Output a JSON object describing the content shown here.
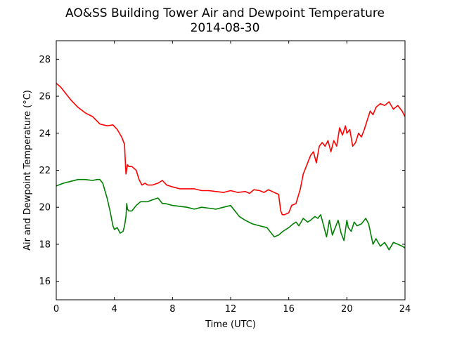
{
  "chart_data": {
    "type": "line",
    "title": "AO&SS Building Tower Air and Dewpoint Temperature",
    "subtitle": "2014-08-30",
    "xlabel": "Time (UTC)",
    "ylabel": "Air and Dewpoint Temperature (°C)",
    "xlim": [
      0,
      24
    ],
    "ylim": [
      15,
      29
    ],
    "xticks": [
      0,
      4,
      8,
      12,
      16,
      20,
      24
    ],
    "yticks": [
      16,
      18,
      20,
      22,
      24,
      26,
      28
    ],
    "grid": false,
    "series": [
      {
        "color": "#ff0000",
        "x": [
          0,
          0.3,
          0.6,
          1.0,
          1.5,
          2.0,
          2.5,
          3.0,
          3.5,
          3.9,
          4.2,
          4.5,
          4.7,
          4.75,
          4.8,
          4.9,
          5.0,
          5.2,
          5.5,
          5.7,
          5.9,
          6.1,
          6.3,
          6.6,
          7.0,
          7.3,
          7.6,
          8.0,
          8.5,
          9.0,
          9.5,
          10.0,
          10.5,
          11.0,
          11.5,
          12.0,
          12.5,
          13.0,
          13.3,
          13.6,
          14.0,
          14.3,
          14.6,
          15.0,
          15.3,
          15.45,
          15.55,
          15.7,
          16.0,
          16.2,
          16.5,
          16.8,
          17.0,
          17.2,
          17.5,
          17.7,
          17.9,
          18.1,
          18.3,
          18.5,
          18.7,
          18.9,
          19.1,
          19.3,
          19.5,
          19.7,
          19.9,
          20.0,
          20.2,
          20.4,
          20.6,
          20.8,
          21.0,
          21.2,
          21.4,
          21.6,
          21.8,
          22.0,
          22.3,
          22.6,
          22.9,
          23.2,
          23.5,
          23.8,
          24.0
        ],
        "y": [
          26.7,
          26.5,
          26.2,
          25.8,
          25.4,
          25.1,
          24.9,
          24.5,
          24.4,
          24.45,
          24.2,
          23.8,
          23.4,
          22.5,
          21.8,
          22.3,
          22.2,
          22.2,
          22.0,
          21.5,
          21.2,
          21.3,
          21.2,
          21.2,
          21.3,
          21.45,
          21.2,
          21.1,
          21.0,
          21.0,
          21.0,
          20.9,
          20.9,
          20.85,
          20.8,
          20.9,
          20.8,
          20.85,
          20.75,
          20.95,
          20.9,
          20.8,
          20.95,
          20.8,
          20.7,
          19.8,
          19.6,
          19.6,
          19.7,
          20.1,
          20.2,
          21.0,
          21.8,
          22.2,
          22.8,
          23.0,
          22.4,
          23.3,
          23.5,
          23.3,
          23.6,
          23.0,
          23.6,
          23.3,
          24.3,
          23.9,
          24.4,
          24.0,
          24.2,
          23.3,
          23.5,
          24.0,
          23.8,
          24.2,
          24.7,
          25.2,
          25.0,
          25.4,
          25.6,
          25.5,
          25.7,
          25.3,
          25.5,
          25.2,
          24.9
        ]
      },
      {
        "color": "#008000",
        "x": [
          0,
          0.5,
          1.0,
          1.5,
          2.0,
          2.5,
          2.8,
          3.0,
          3.2,
          3.5,
          3.7,
          3.9,
          4.0,
          4.2,
          4.4,
          4.6,
          4.7,
          4.8,
          4.85,
          4.9,
          5.0,
          5.2,
          5.5,
          5.8,
          6.0,
          6.3,
          6.6,
          7.0,
          7.3,
          7.5,
          8.0,
          8.5,
          9.0,
          9.5,
          10.0,
          10.5,
          11.0,
          11.5,
          12.0,
          12.3,
          12.6,
          13.0,
          13.5,
          14.0,
          14.5,
          15.0,
          15.3,
          15.6,
          16.0,
          16.3,
          16.5,
          16.7,
          17.0,
          17.3,
          17.5,
          17.8,
          18.0,
          18.2,
          18.4,
          18.6,
          18.8,
          19.0,
          19.2,
          19.4,
          19.6,
          19.8,
          20.0,
          20.1,
          20.3,
          20.5,
          20.7,
          21.0,
          21.3,
          21.5,
          21.8,
          22.0,
          22.3,
          22.6,
          22.9,
          23.2,
          23.5,
          23.8,
          24.0
        ],
        "y": [
          21.15,
          21.3,
          21.4,
          21.5,
          21.5,
          21.45,
          21.5,
          21.5,
          21.3,
          20.5,
          19.8,
          19.0,
          18.8,
          18.9,
          18.6,
          18.7,
          19.0,
          19.5,
          20.2,
          19.9,
          19.8,
          19.8,
          20.1,
          20.3,
          20.3,
          20.3,
          20.4,
          20.5,
          20.2,
          20.2,
          20.1,
          20.05,
          20.0,
          19.9,
          20.0,
          19.95,
          19.9,
          20.0,
          20.1,
          19.8,
          19.5,
          19.3,
          19.1,
          19.0,
          18.9,
          18.4,
          18.5,
          18.7,
          18.9,
          19.1,
          19.2,
          19.0,
          19.4,
          19.2,
          19.3,
          19.5,
          19.4,
          19.6,
          19.0,
          18.4,
          19.3,
          18.5,
          18.9,
          19.3,
          18.6,
          18.2,
          19.3,
          18.9,
          18.7,
          19.2,
          19.0,
          19.1,
          19.4,
          19.1,
          18.0,
          18.3,
          17.9,
          18.1,
          17.7,
          18.1,
          18.0,
          17.9,
          17.8
        ]
      }
    ]
  }
}
